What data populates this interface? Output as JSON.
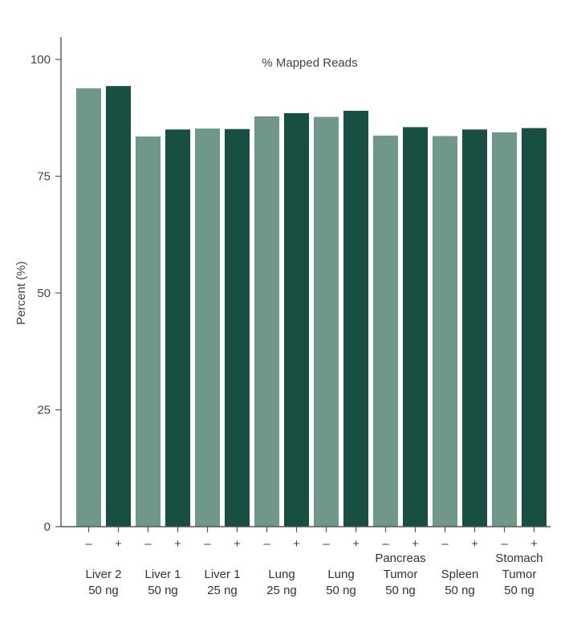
{
  "chart_data": {
    "type": "bar",
    "title": "% Mapped Reads",
    "ylabel": "Percent (%)",
    "xlabel": "",
    "ylim": [
      0,
      100
    ],
    "yticks": [
      0,
      25,
      50,
      75,
      100
    ],
    "grid": false,
    "legend": "none",
    "colors": {
      "minus": "#6f978a",
      "plus": "#175042"
    },
    "groups": [
      {
        "label_lines": [
          "Liver 2",
          "50 ng"
        ],
        "bars": [
          {
            "sign": "–",
            "value": 93.8
          },
          {
            "sign": "+",
            "value": 94.3
          }
        ]
      },
      {
        "label_lines": [
          "Liver 1",
          "50 ng"
        ],
        "bars": [
          {
            "sign": "–",
            "value": 83.5
          },
          {
            "sign": "+",
            "value": 85.0
          }
        ]
      },
      {
        "label_lines": [
          "Liver 1",
          "25 ng"
        ],
        "bars": [
          {
            "sign": "–",
            "value": 85.2
          },
          {
            "sign": "+",
            "value": 85.1
          }
        ]
      },
      {
        "label_lines": [
          "Lung",
          "25 ng"
        ],
        "bars": [
          {
            "sign": "–",
            "value": 87.8
          },
          {
            "sign": "+",
            "value": 88.5
          }
        ]
      },
      {
        "label_lines": [
          "Lung",
          "50 ng"
        ],
        "bars": [
          {
            "sign": "–",
            "value": 87.7
          },
          {
            "sign": "+",
            "value": 89.0
          }
        ]
      },
      {
        "label_lines": [
          "Pancreas",
          "Tumor",
          "50 ng"
        ],
        "bars": [
          {
            "sign": "–",
            "value": 83.7
          },
          {
            "sign": "+",
            "value": 85.5
          }
        ]
      },
      {
        "label_lines": [
          "Spleen",
          "50 ng"
        ],
        "bars": [
          {
            "sign": "–",
            "value": 83.6
          },
          {
            "sign": "+",
            "value": 85.0
          }
        ]
      },
      {
        "label_lines": [
          "Stomach",
          "Tumor",
          "50 ng"
        ],
        "bars": [
          {
            "sign": "–",
            "value": 84.4
          },
          {
            "sign": "+",
            "value": 85.3
          }
        ]
      }
    ]
  }
}
